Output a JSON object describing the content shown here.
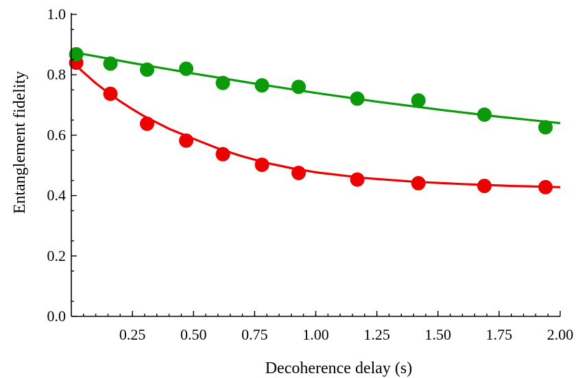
{
  "chart_data": {
    "type": "scatter",
    "title": "",
    "xlabel": "Decoherence delay (s)",
    "ylabel": "Entanglement fidelity",
    "xlim": [
      0.0,
      2.0
    ],
    "ylim": [
      0.0,
      1.0
    ],
    "xticks": [
      "0.25",
      "0.50",
      "0.75",
      "1.00",
      "1.25",
      "1.50",
      "1.75",
      "2.00"
    ],
    "yticks": [
      "0.0",
      "0.2",
      "0.4",
      "0.6",
      "0.8",
      "1.0"
    ],
    "grid": false,
    "legend": "none",
    "series": [
      {
        "color": "#0a9a0a",
        "points": [
          {
            "x": 0.02,
            "y": 0.868
          },
          {
            "x": 0.16,
            "y": 0.837
          },
          {
            "x": 0.31,
            "y": 0.817
          },
          {
            "x": 0.47,
            "y": 0.82
          },
          {
            "x": 0.62,
            "y": 0.773
          },
          {
            "x": 0.78,
            "y": 0.765
          },
          {
            "x": 0.93,
            "y": 0.76
          },
          {
            "x": 1.17,
            "y": 0.721
          },
          {
            "x": 1.42,
            "y": 0.715
          },
          {
            "x": 1.69,
            "y": 0.668
          },
          {
            "x": 1.94,
            "y": 0.626
          }
        ],
        "fit": [
          {
            "x": 0.0,
            "y": 0.876
          },
          {
            "x": 0.25,
            "y": 0.839
          },
          {
            "x": 0.5,
            "y": 0.804
          },
          {
            "x": 0.75,
            "y": 0.771
          },
          {
            "x": 1.0,
            "y": 0.74
          },
          {
            "x": 1.25,
            "y": 0.711
          },
          {
            "x": 1.5,
            "y": 0.685
          },
          {
            "x": 1.75,
            "y": 0.661
          },
          {
            "x": 2.0,
            "y": 0.64
          }
        ]
      },
      {
        "color": "#ee0000",
        "points": [
          {
            "x": 0.02,
            "y": 0.84
          },
          {
            "x": 0.16,
            "y": 0.737
          },
          {
            "x": 0.31,
            "y": 0.638
          },
          {
            "x": 0.47,
            "y": 0.582
          },
          {
            "x": 0.62,
            "y": 0.537
          },
          {
            "x": 0.78,
            "y": 0.502
          },
          {
            "x": 0.93,
            "y": 0.475
          },
          {
            "x": 1.17,
            "y": 0.453
          },
          {
            "x": 1.42,
            "y": 0.441
          },
          {
            "x": 1.69,
            "y": 0.432
          },
          {
            "x": 1.94,
            "y": 0.428
          }
        ],
        "fit": [
          {
            "x": 0.0,
            "y": 0.845
          },
          {
            "x": 0.05,
            "y": 0.808
          },
          {
            "x": 0.1,
            "y": 0.772
          },
          {
            "x": 0.15,
            "y": 0.741
          },
          {
            "x": 0.2,
            "y": 0.712
          },
          {
            "x": 0.25,
            "y": 0.686
          },
          {
            "x": 0.3,
            "y": 0.662
          },
          {
            "x": 0.4,
            "y": 0.621
          },
          {
            "x": 0.5,
            "y": 0.588
          },
          {
            "x": 0.6,
            "y": 0.556
          },
          {
            "x": 0.7,
            "y": 0.53
          },
          {
            "x": 0.8,
            "y": 0.508
          },
          {
            "x": 0.9,
            "y": 0.491
          },
          {
            "x": 1.0,
            "y": 0.477
          },
          {
            "x": 1.2,
            "y": 0.458
          },
          {
            "x": 1.4,
            "y": 0.446
          },
          {
            "x": 1.6,
            "y": 0.438
          },
          {
            "x": 1.8,
            "y": 0.432
          },
          {
            "x": 2.0,
            "y": 0.428
          }
        ]
      }
    ]
  }
}
